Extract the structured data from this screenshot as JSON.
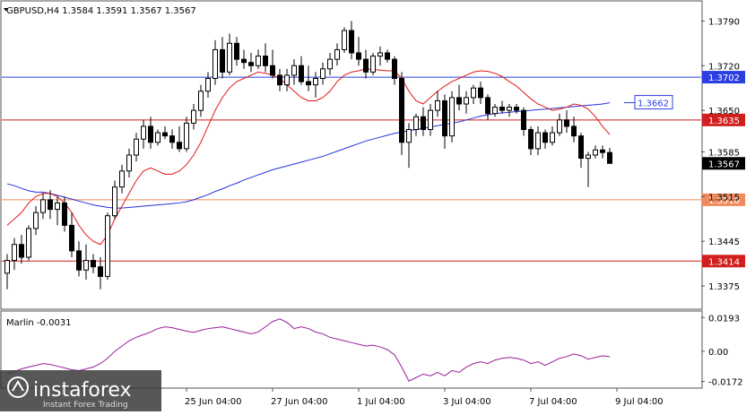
{
  "chart_data": {
    "type": "candlestick",
    "symbol_header": "GBPUSD,H4  1.3584 1.3591 1.3567 1.3567",
    "indicator_label": "Marlin -0.0031",
    "price_axis": {
      "range": [
        1.334,
        1.382
      ],
      "ticks": [
        "1.3790",
        "1.3720",
        "1.3650",
        "1.3585",
        "1.3515",
        "1.3445",
        "1.3375"
      ]
    },
    "indicator_axis": {
      "range": [
        -0.0205,
        0.0225
      ],
      "ticks": [
        "0.0193",
        "0.00",
        "-0.0172"
      ]
    },
    "x_axis_labels": [
      "25 Jun 04:00",
      "27 Jun 04:00",
      "1 Jul 04:00",
      "3 Jul 04:00",
      "7 Jul 04:00",
      "9 Jul 04:00"
    ],
    "x_axis_label_bars": [
      25,
      37,
      49,
      61,
      73,
      85
    ],
    "levels": [
      {
        "value": 1.3702,
        "label": "1.3702",
        "color": "#2b3fe0",
        "style": "solid"
      },
      {
        "value": 1.3635,
        "label": "1.3635",
        "color": "#d11f1f",
        "style": "solid"
      },
      {
        "value": 1.351,
        "label": "1.3510",
        "color": "#f08a5d",
        "style": "solid"
      },
      {
        "value": 1.3414,
        "label": "1.3414",
        "color": "#d11f1f",
        "style": "solid"
      }
    ],
    "current_price": {
      "value": 1.3567,
      "label": "1.3567"
    },
    "ma_tag": {
      "value": 1.3662,
      "label": "1.3662",
      "color": "#2b3fe0"
    },
    "candles": [
      [
        1.3395,
        1.3425,
        1.337,
        1.3415
      ],
      [
        1.3415,
        1.345,
        1.34,
        1.344
      ],
      [
        1.344,
        1.3455,
        1.341,
        1.342
      ],
      [
        1.342,
        1.347,
        1.3415,
        1.3465
      ],
      [
        1.3465,
        1.35,
        1.3455,
        1.349
      ],
      [
        1.349,
        1.352,
        1.348,
        1.351
      ],
      [
        1.351,
        1.3525,
        1.348,
        1.3495
      ],
      [
        1.3495,
        1.3515,
        1.347,
        1.3505
      ],
      [
        1.3505,
        1.3515,
        1.346,
        1.347
      ],
      [
        1.347,
        1.349,
        1.342,
        1.343
      ],
      [
        1.343,
        1.3445,
        1.339,
        1.34
      ],
      [
        1.34,
        1.344,
        1.3385,
        1.3415
      ],
      [
        1.3415,
        1.3425,
        1.3395,
        1.3405
      ],
      [
        1.3405,
        1.342,
        1.337,
        1.339
      ],
      [
        1.339,
        1.349,
        1.3385,
        1.3485
      ],
      [
        1.3485,
        1.354,
        1.348,
        1.353
      ],
      [
        1.353,
        1.3565,
        1.352,
        1.3555
      ],
      [
        1.3555,
        1.359,
        1.3545,
        1.358
      ],
      [
        1.358,
        1.3615,
        1.357,
        1.3605
      ],
      [
        1.3605,
        1.3635,
        1.359,
        1.3625
      ],
      [
        1.3625,
        1.364,
        1.359,
        1.36
      ],
      [
        1.36,
        1.362,
        1.3595,
        1.3615
      ],
      [
        1.3615,
        1.3625,
        1.3605,
        1.361
      ],
      [
        1.361,
        1.362,
        1.359,
        1.36
      ],
      [
        1.36,
        1.3625,
        1.3585,
        1.359
      ],
      [
        1.359,
        1.364,
        1.3585,
        1.363
      ],
      [
        1.363,
        1.366,
        1.362,
        1.365
      ],
      [
        1.365,
        1.369,
        1.364,
        1.368
      ],
      [
        1.368,
        1.371,
        1.367,
        1.37
      ],
      [
        1.37,
        1.376,
        1.369,
        1.3745
      ],
      [
        1.3745,
        1.3765,
        1.37,
        1.371
      ],
      [
        1.371,
        1.377,
        1.3705,
        1.3755
      ],
      [
        1.3755,
        1.3765,
        1.372,
        1.373
      ],
      [
        1.373,
        1.3745,
        1.3715,
        1.3725
      ],
      [
        1.3725,
        1.374,
        1.371,
        1.372
      ],
      [
        1.372,
        1.3745,
        1.3715,
        1.3735
      ],
      [
        1.3735,
        1.3755,
        1.371,
        1.372
      ],
      [
        1.372,
        1.3745,
        1.37,
        1.3705
      ],
      [
        1.3705,
        1.3715,
        1.368,
        1.369
      ],
      [
        1.369,
        1.3715,
        1.368,
        1.3705
      ],
      [
        1.3705,
        1.373,
        1.369,
        1.372
      ],
      [
        1.372,
        1.3735,
        1.369,
        1.3695
      ],
      [
        1.3695,
        1.372,
        1.368,
        1.369
      ],
      [
        1.369,
        1.371,
        1.367,
        1.37
      ],
      [
        1.37,
        1.3725,
        1.369,
        1.3715
      ],
      [
        1.3715,
        1.374,
        1.3705,
        1.373
      ],
      [
        1.373,
        1.3755,
        1.372,
        1.3745
      ],
      [
        1.3745,
        1.378,
        1.374,
        1.3775
      ],
      [
        1.3775,
        1.379,
        1.373,
        1.374
      ],
      [
        1.374,
        1.3765,
        1.372,
        1.373
      ],
      [
        1.373,
        1.3745,
        1.37,
        1.371
      ],
      [
        1.371,
        1.374,
        1.3705,
        1.3735
      ],
      [
        1.3735,
        1.375,
        1.372,
        1.374
      ],
      [
        1.374,
        1.3745,
        1.3725,
        1.373
      ],
      [
        1.373,
        1.3735,
        1.369,
        1.37
      ],
      [
        1.37,
        1.371,
        1.358,
        1.36
      ],
      [
        1.36,
        1.363,
        1.356,
        1.362
      ],
      [
        1.362,
        1.3645,
        1.361,
        1.364
      ],
      [
        1.364,
        1.3655,
        1.361,
        1.362
      ],
      [
        1.362,
        1.366,
        1.361,
        1.365
      ],
      [
        1.365,
        1.368,
        1.364,
        1.3665
      ],
      [
        1.3665,
        1.3675,
        1.359,
        1.361
      ],
      [
        1.361,
        1.368,
        1.36,
        1.367
      ],
      [
        1.367,
        1.369,
        1.365,
        1.366
      ],
      [
        1.366,
        1.368,
        1.3645,
        1.367
      ],
      [
        1.367,
        1.369,
        1.366,
        1.3685
      ],
      [
        1.3685,
        1.3695,
        1.366,
        1.367
      ],
      [
        1.367,
        1.3675,
        1.3635,
        1.3645
      ],
      [
        1.3645,
        1.366,
        1.364,
        1.3655
      ],
      [
        1.3655,
        1.3665,
        1.3645,
        1.365
      ],
      [
        1.365,
        1.366,
        1.364,
        1.3655
      ],
      [
        1.3655,
        1.366,
        1.3645,
        1.365
      ],
      [
        1.365,
        1.3655,
        1.361,
        1.362
      ],
      [
        1.362,
        1.3625,
        1.358,
        1.359
      ],
      [
        1.359,
        1.3625,
        1.358,
        1.3615
      ],
      [
        1.3615,
        1.362,
        1.359,
        1.36
      ],
      [
        1.36,
        1.3625,
        1.3595,
        1.3615
      ],
      [
        1.3615,
        1.3645,
        1.361,
        1.3635
      ],
      [
        1.3635,
        1.365,
        1.3615,
        1.3625
      ],
      [
        1.3625,
        1.364,
        1.36,
        1.361
      ],
      [
        1.361,
        1.3615,
        1.356,
        1.3575
      ],
      [
        1.3575,
        1.3585,
        1.353,
        1.358
      ],
      [
        1.358,
        1.3595,
        1.3575,
        1.3588
      ],
      [
        1.3588,
        1.3595,
        1.3575,
        1.3584
      ],
      [
        1.3584,
        1.3591,
        1.3567,
        1.3567
      ]
    ],
    "red_ma": [
      1.347,
      1.348,
      1.349,
      1.3505,
      1.3515,
      1.352,
      1.352,
      1.3515,
      1.3505,
      1.349,
      1.347,
      1.3455,
      1.3445,
      1.344,
      1.3455,
      1.348,
      1.35,
      1.352,
      1.354,
      1.3555,
      1.356,
      1.3555,
      1.355,
      1.355,
      1.3555,
      1.3565,
      1.358,
      1.36,
      1.3625,
      1.365,
      1.367,
      1.3685,
      1.3695,
      1.37,
      1.3705,
      1.371,
      1.3708,
      1.3705,
      1.37,
      1.369,
      1.368,
      1.367,
      1.3665,
      1.3665,
      1.367,
      1.368,
      1.3695,
      1.3705,
      1.371,
      1.3712,
      1.3715,
      1.3714,
      1.3713,
      1.3712,
      1.3712,
      1.37,
      1.368,
      1.3665,
      1.366,
      1.367,
      1.368,
      1.3688,
      1.3695,
      1.37,
      1.3705,
      1.371,
      1.3712,
      1.3711,
      1.3708,
      1.3703,
      1.3695,
      1.3688,
      1.3678,
      1.3668,
      1.366,
      1.3655,
      1.365,
      1.3652,
      1.3655,
      1.366,
      1.3658,
      1.3652,
      1.364,
      1.3625,
      1.3612
    ],
    "blue_ma": [
      1.3535,
      1.3532,
      1.3528,
      1.3524,
      1.3522,
      1.3522,
      1.352,
      1.3517,
      1.3514,
      1.3511,
      1.3508,
      1.3505,
      1.3502,
      1.35,
      1.3498,
      1.3497,
      1.3497,
      1.3498,
      1.3499,
      1.35,
      1.3501,
      1.3502,
      1.3503,
      1.3504,
      1.3505,
      1.3507,
      1.351,
      1.3514,
      1.3518,
      1.3523,
      1.3527,
      1.3532,
      1.3536,
      1.3541,
      1.3545,
      1.3549,
      1.3553,
      1.3557,
      1.356,
      1.3563,
      1.3566,
      1.3569,
      1.3572,
      1.3575,
      1.3578,
      1.3582,
      1.3586,
      1.359,
      1.3594,
      1.3598,
      1.3602,
      1.3605,
      1.3608,
      1.3611,
      1.3614,
      1.3616,
      1.3618,
      1.362,
      1.3622,
      1.3624,
      1.3626,
      1.3628,
      1.363,
      1.3632,
      1.3635,
      1.3638,
      1.3641,
      1.3643,
      1.3645,
      1.3646,
      1.3647,
      1.3648,
      1.3649,
      1.365,
      1.3651,
      1.3652,
      1.3653,
      1.3654,
      1.3655,
      1.3656,
      1.3657,
      1.3658,
      1.3659,
      1.366,
      1.3662
    ],
    "marlin": [
      -0.013,
      -0.0115,
      -0.01,
      -0.009,
      -0.008,
      -0.007,
      -0.0075,
      -0.0085,
      -0.0095,
      -0.0105,
      -0.011,
      -0.01,
      -0.009,
      -0.007,
      -0.004,
      0.0,
      0.003,
      0.006,
      0.008,
      0.0095,
      0.011,
      0.013,
      0.014,
      0.0135,
      0.0125,
      0.0115,
      0.0108,
      0.012,
      0.013,
      0.0135,
      0.014,
      0.013,
      0.012,
      0.011,
      0.01,
      0.011,
      0.014,
      0.017,
      0.0185,
      0.0165,
      0.013,
      0.014,
      0.013,
      0.011,
      0.01,
      0.008,
      0.007,
      0.006,
      0.005,
      0.004,
      0.003,
      0.0035,
      0.0025,
      0.001,
      -0.002,
      -0.009,
      -0.017,
      -0.015,
      -0.013,
      -0.014,
      -0.012,
      -0.014,
      -0.011,
      -0.012,
      -0.009,
      -0.007,
      -0.006,
      -0.007,
      -0.005,
      -0.004,
      -0.0035,
      -0.004,
      -0.005,
      -0.007,
      -0.006,
      -0.008,
      -0.006,
      -0.004,
      -0.003,
      -0.0015,
      -0.0025,
      -0.0045,
      -0.0035,
      -0.0025,
      -0.0031
    ]
  },
  "watermark": {
    "brand": "instaforex",
    "tagline": "Instant Forex Trading"
  }
}
